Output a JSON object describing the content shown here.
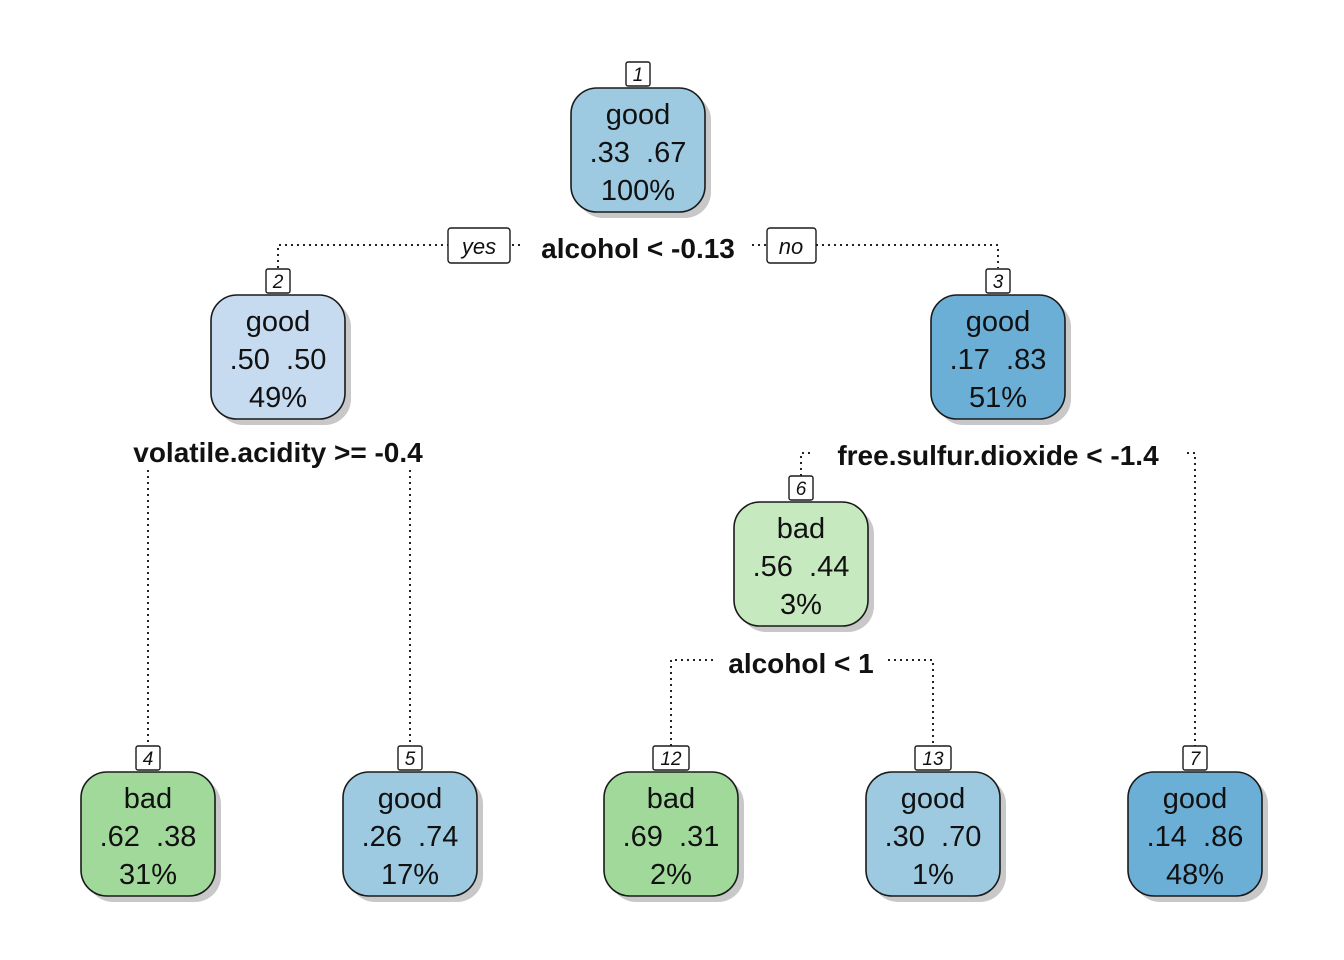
{
  "colors": {
    "good_light": "#c6dbef",
    "good_mid": "#9ecae1",
    "good_dark": "#6baed6",
    "bad_light": "#c7e9c0",
    "bad_mid": "#a1d99b",
    "border": "#1a1a1a"
  },
  "nodes": [
    {
      "id": "1",
      "class": "good",
      "probs": ".33  .67",
      "pct": "100%",
      "color": "#9ecae1"
    },
    {
      "id": "2",
      "class": "good",
      "probs": ".50  .50",
      "pct": "49%",
      "color": "#c6dbef"
    },
    {
      "id": "3",
      "class": "good",
      "probs": ".17  .83",
      "pct": "51%",
      "color": "#6baed6"
    },
    {
      "id": "6",
      "class": "bad",
      "probs": ".56  .44",
      "pct": "3%",
      "color": "#c7e9c0"
    },
    {
      "id": "4",
      "class": "bad",
      "probs": ".62  .38",
      "pct": "31%",
      "color": "#a1d99b"
    },
    {
      "id": "5",
      "class": "good",
      "probs": ".26  .74",
      "pct": "17%",
      "color": "#9ecae1"
    },
    {
      "id": "12",
      "class": "bad",
      "probs": ".69  .31",
      "pct": "2%",
      "color": "#a1d99b"
    },
    {
      "id": "13",
      "class": "good",
      "probs": ".30  .70",
      "pct": "1%",
      "color": "#9ecae1"
    },
    {
      "id": "7",
      "class": "good",
      "probs": ".14  .86",
      "pct": "48%",
      "color": "#6baed6"
    }
  ],
  "splits": [
    {
      "label": "alcohol < -0.13"
    },
    {
      "label": "volatile.acidity >= -0.4"
    },
    {
      "label": "free.sulfur.dioxide < -1.4"
    },
    {
      "label": "alcohol < 1"
    }
  ],
  "branch_labels": {
    "yes": "yes",
    "no": "no"
  }
}
